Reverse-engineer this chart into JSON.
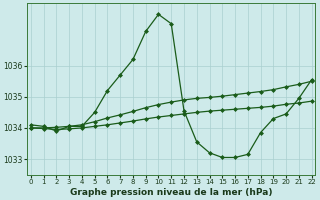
{
  "title": "Graphe pression niveau de la mer (hPa)",
  "background_color": "#ceeaea",
  "grid_color": "#aacfcf",
  "line_color": "#1a5c1a",
  "ylim": [
    1032.5,
    1038.0
  ],
  "xlim": [
    -0.3,
    22.3
  ],
  "yticks": [
    1033,
    1034,
    1035,
    1036
  ],
  "xticks": [
    0,
    1,
    2,
    3,
    4,
    5,
    6,
    7,
    8,
    9,
    10,
    11,
    12,
    13,
    14,
    15,
    16,
    17,
    18,
    19,
    20,
    21,
    22
  ],
  "line1_x": [
    0,
    1,
    2,
    3,
    4,
    5,
    6,
    7,
    8,
    9,
    10,
    11,
    12,
    13,
    14,
    15,
    16,
    17,
    18,
    19,
    20,
    21,
    22
  ],
  "line1_y": [
    1034.1,
    1034.05,
    1033.9,
    1034.05,
    1034.05,
    1034.5,
    1035.2,
    1035.7,
    1036.2,
    1037.1,
    1037.65,
    1037.35,
    1034.55,
    1033.55,
    1033.2,
    1033.05,
    1033.05,
    1033.15,
    1033.85,
    1034.3,
    1034.45,
    1034.95,
    1035.55
  ],
  "line2_x": [
    0,
    1,
    2,
    3,
    4,
    5,
    6,
    7,
    8,
    9,
    10,
    11,
    12,
    13,
    14,
    15,
    16,
    17,
    18,
    19,
    20,
    21,
    22
  ],
  "line2_y": [
    1034.0,
    1034.0,
    1034.02,
    1034.05,
    1034.1,
    1034.2,
    1034.32,
    1034.42,
    1034.53,
    1034.65,
    1034.75,
    1034.83,
    1034.9,
    1034.95,
    1034.98,
    1035.02,
    1035.07,
    1035.12,
    1035.17,
    1035.23,
    1035.32,
    1035.4,
    1035.5
  ],
  "line3_x": [
    0,
    1,
    2,
    3,
    4,
    5,
    6,
    7,
    8,
    9,
    10,
    11,
    12,
    13,
    14,
    15,
    16,
    17,
    18,
    19,
    20,
    21,
    22
  ],
  "line3_y": [
    1034.0,
    1033.98,
    1033.95,
    1033.97,
    1034.0,
    1034.05,
    1034.1,
    1034.16,
    1034.22,
    1034.29,
    1034.35,
    1034.4,
    1034.45,
    1034.5,
    1034.54,
    1034.57,
    1034.6,
    1034.63,
    1034.66,
    1034.7,
    1034.76,
    1034.8,
    1034.86
  ]
}
